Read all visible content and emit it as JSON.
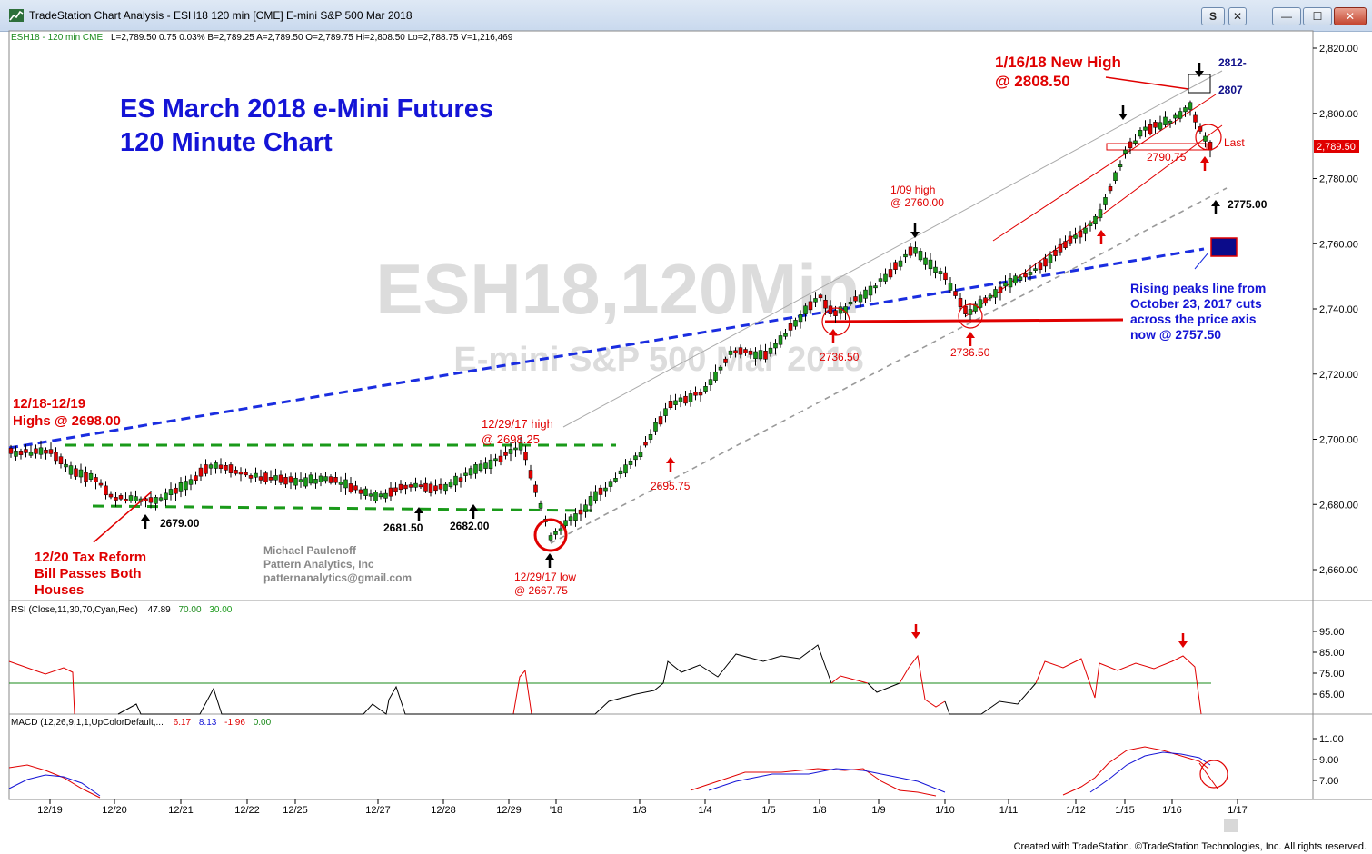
{
  "window": {
    "title": "TradeStation Chart Analysis - ESH18 120 min [CME] E-mini S&P 500 Mar 2018",
    "buttons": {
      "s_label": "S",
      "close_small": "✕",
      "minimize": "—",
      "maximize": "☐",
      "close": "✕"
    }
  },
  "status_line": {
    "symbol": "ESH18 - 120 min  CME",
    "quote": "L=2,789.50  0.75  0.03%  B=2,789.25  A=2,789.50  O=2,789.75  Hi=2,808.50  Lo=2,788.75  V=1,216,469"
  },
  "watermark": {
    "symbol": "ESH18,120Min",
    "name": "E-mini S&P 500 Mar 2018"
  },
  "chart_title": {
    "line1": "ES March 2018 e-Mini Futures",
    "line2": "120 Minute Chart"
  },
  "author": {
    "name": "Michael Paulenoff",
    "company": "Pattern Analytics, Inc",
    "email": "patternanalytics@gmail.com"
  },
  "price_axis_labels": [
    "2,820.00",
    "2,800.00",
    "2,780.00",
    "2,760.00",
    "2,740.00",
    "2,720.00",
    "2,700.00",
    "2,680.00",
    "2,660.00"
  ],
  "last_price_tag": "2,789.50",
  "date_labels": [
    "12/19",
    "12/20",
    "12/21",
    "12/22",
    "12/25",
    "12/27",
    "12/28",
    "12/29",
    "'18",
    "1/3",
    "1/4",
    "1/5",
    "1/8",
    "1/9",
    "1/10",
    "1/11",
    "1/12",
    "1/15",
    "1/16",
    "1/17"
  ],
  "annotations": {
    "a1218": {
      "l1": "12/18-12/19",
      "l2": "Highs @ 2698.00"
    },
    "a1220": {
      "l1": "12/20 Tax Reform",
      "l2": "Bill Passes Both",
      "l3": "Houses"
    },
    "lv2679": "2679.00",
    "lv268150": "2681.50",
    "lv2682": "2682.00",
    "high1229": {
      "l1": "12/29/17 high",
      "l2": "@ 2698.25"
    },
    "low1229": {
      "l1": "12/29/17 low",
      "l2": "@ 2667.75"
    },
    "lv269575": "2695.75",
    "lv273650a": "2736.50",
    "high109": {
      "l1": "1/09 high",
      "l2": "@ 2760.00"
    },
    "lv273650b": "2736.50",
    "newhigh": {
      "l1": "1/16/18 New High",
      "l2": "@ 2808.50"
    },
    "lv2812": "2812-",
    "lv2807": "2807",
    "lv279075": "2790.75",
    "last": "Last",
    "lv2775": "2775.00",
    "rising": {
      "l1": "Rising peaks line from",
      "l2": "October 23, 2017 cuts",
      "l3": "across the price axis",
      "l4": "now @ 2757.50"
    }
  },
  "rsi": {
    "title": "RSI (Close,11,30,70,Cyan,Red)",
    "v1": "47.89",
    "v2": "70.00",
    "v3": "30.00",
    "axis": [
      "95.00",
      "85.00",
      "75.00",
      "65.00"
    ]
  },
  "macd": {
    "title": "MACD (12,26,9,1,1,UpColorDefault,...",
    "v1": "6.17",
    "v2": "8.13",
    "v3": "-1.96",
    "v4": "0.00",
    "axis": [
      "11.00",
      "9.00",
      "7.00"
    ]
  },
  "footer": "Created with TradeStation. ©TradeStation Technologies, Inc. All rights reserved.",
  "chart_data": {
    "type": "candlestick",
    "symbol": "ESH18",
    "interval": "120 min",
    "ylim": [
      2653,
      2826
    ],
    "x": [
      "12/19",
      "12/20",
      "12/21",
      "12/22",
      "12/25",
      "12/27",
      "12/28",
      "12/29",
      "'18",
      "1/3",
      "1/4",
      "1/5",
      "1/8",
      "1/9",
      "1/10",
      "1/11",
      "1/12",
      "1/15",
      "1/16",
      "1/17"
    ],
    "close_path": [
      {
        "x": "12/18",
        "y": 2696
      },
      {
        "x": "12/19",
        "y": 2696
      },
      {
        "x": "12/19",
        "y": 2690
      },
      {
        "x": "12/20",
        "y": 2688
      },
      {
        "x": "12/20",
        "y": 2682
      },
      {
        "x": "12/21",
        "y": 2681
      },
      {
        "x": "12/21",
        "y": 2692
      },
      {
        "x": "12/22",
        "y": 2689
      },
      {
        "x": "12/25",
        "y": 2687
      },
      {
        "x": "12/27",
        "y": 2688
      },
      {
        "x": "12/27",
        "y": 2682
      },
      {
        "x": "12/28",
        "y": 2686
      },
      {
        "x": "12/28",
        "y": 2685
      },
      {
        "x": "12/29",
        "y": 2698
      },
      {
        "x": "12/29",
        "y": 2682
      },
      {
        "x": "'18",
        "y": 2670
      },
      {
        "x": "'18",
        "y": 2678
      },
      {
        "x": "1/3",
        "y": 2695
      },
      {
        "x": "1/3",
        "y": 2710
      },
      {
        "x": "1/4",
        "y": 2715
      },
      {
        "x": "1/4",
        "y": 2727
      },
      {
        "x": "1/5",
        "y": 2726
      },
      {
        "x": "1/5",
        "y": 2734
      },
      {
        "x": "1/8",
        "y": 2744
      },
      {
        "x": "1/8",
        "y": 2738
      },
      {
        "x": "1/9",
        "y": 2748
      },
      {
        "x": "1/9",
        "y": 2758
      },
      {
        "x": "1/10",
        "y": 2750
      },
      {
        "x": "1/10",
        "y": 2738
      },
      {
        "x": "1/11",
        "y": 2748
      },
      {
        "x": "1/11",
        "y": 2752
      },
      {
        "x": "1/12",
        "y": 2762
      },
      {
        "x": "1/12",
        "y": 2768
      },
      {
        "x": "1/15",
        "y": 2788
      },
      {
        "x": "1/15",
        "y": 2795
      },
      {
        "x": "1/16",
        "y": 2798
      },
      {
        "x": "1/16",
        "y": 2802
      },
      {
        "x": "1/16",
        "y": 2789.5
      }
    ],
    "key_levels": {
      "new_high_2018_01_16": 2808.5,
      "high_2017_12_29": 2698.25,
      "low_2017_12_29": 2667.75,
      "high_2018_01_09": 2760.0,
      "support_2736_50": 2736.5,
      "support_2790_75": 2790.75,
      "support_2695_75": 2695.75,
      "level_2775": 2775.0,
      "rising_peaks_line_now": 2757.5,
      "level_2812": 2812,
      "level_2807": 2807,
      "highs_12_18_12_19": 2698.0,
      "level_2679": 2679.0,
      "level_2681_50": 2681.5,
      "level_2682": 2682.0
    },
    "last": 2789.5,
    "rsi": {
      "params": "Close,11,30,70",
      "value": 47.89,
      "overbought": 70,
      "oversold": 30
    },
    "macd": {
      "params": "12,26,9",
      "macd": 6.17,
      "signal": 8.13,
      "diff": -1.96,
      "zero": 0.0
    }
  }
}
